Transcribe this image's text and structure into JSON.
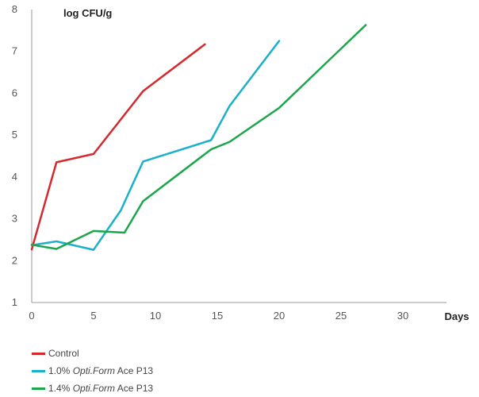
{
  "chart_data": {
    "type": "line",
    "ylabel": "log CFU/g",
    "xlabel": "Days",
    "xlim": [
      0,
      35
    ],
    "ylim": [
      1,
      8
    ],
    "x_ticks": [
      0,
      5,
      10,
      15,
      20,
      25,
      30
    ],
    "y_ticks": [
      1,
      2,
      3,
      4,
      5,
      6,
      7,
      8
    ],
    "grid": false,
    "legend_position": "bottom-left",
    "series": [
      {
        "name": "Control",
        "name_parts": [
          {
            "text": "Control",
            "italic": false
          }
        ],
        "color": "#d42a2e",
        "x": [
          0,
          2,
          5,
          9,
          14
        ],
        "y": [
          2.27,
          4.35,
          4.55,
          6.05,
          7.17
        ]
      },
      {
        "name": "1.0% Opti.Form Ace P13",
        "name_parts": [
          {
            "text": "1.0% ",
            "italic": false
          },
          {
            "text": "Opti.Form",
            "italic": true
          },
          {
            "text": " Ace P13",
            "italic": false
          }
        ],
        "color": "#1ab0cb",
        "x": [
          0,
          2,
          5,
          7.2,
          9,
          14.5,
          16,
          20
        ],
        "y": [
          2.37,
          2.46,
          2.26,
          3.2,
          4.37,
          4.88,
          5.7,
          7.25
        ]
      },
      {
        "name": "1.4% Opti.Form Ace P13",
        "name_parts": [
          {
            "text": "1.4% ",
            "italic": false
          },
          {
            "text": "Opti.Form",
            "italic": true
          },
          {
            "text": " Ace P13",
            "italic": false
          }
        ],
        "color": "#1aa64a",
        "x": [
          0,
          2,
          5,
          7.5,
          9,
          14.5,
          16,
          20,
          27
        ],
        "y": [
          2.38,
          2.28,
          2.71,
          2.67,
          3.42,
          4.66,
          4.84,
          5.65,
          7.63
        ]
      }
    ]
  }
}
